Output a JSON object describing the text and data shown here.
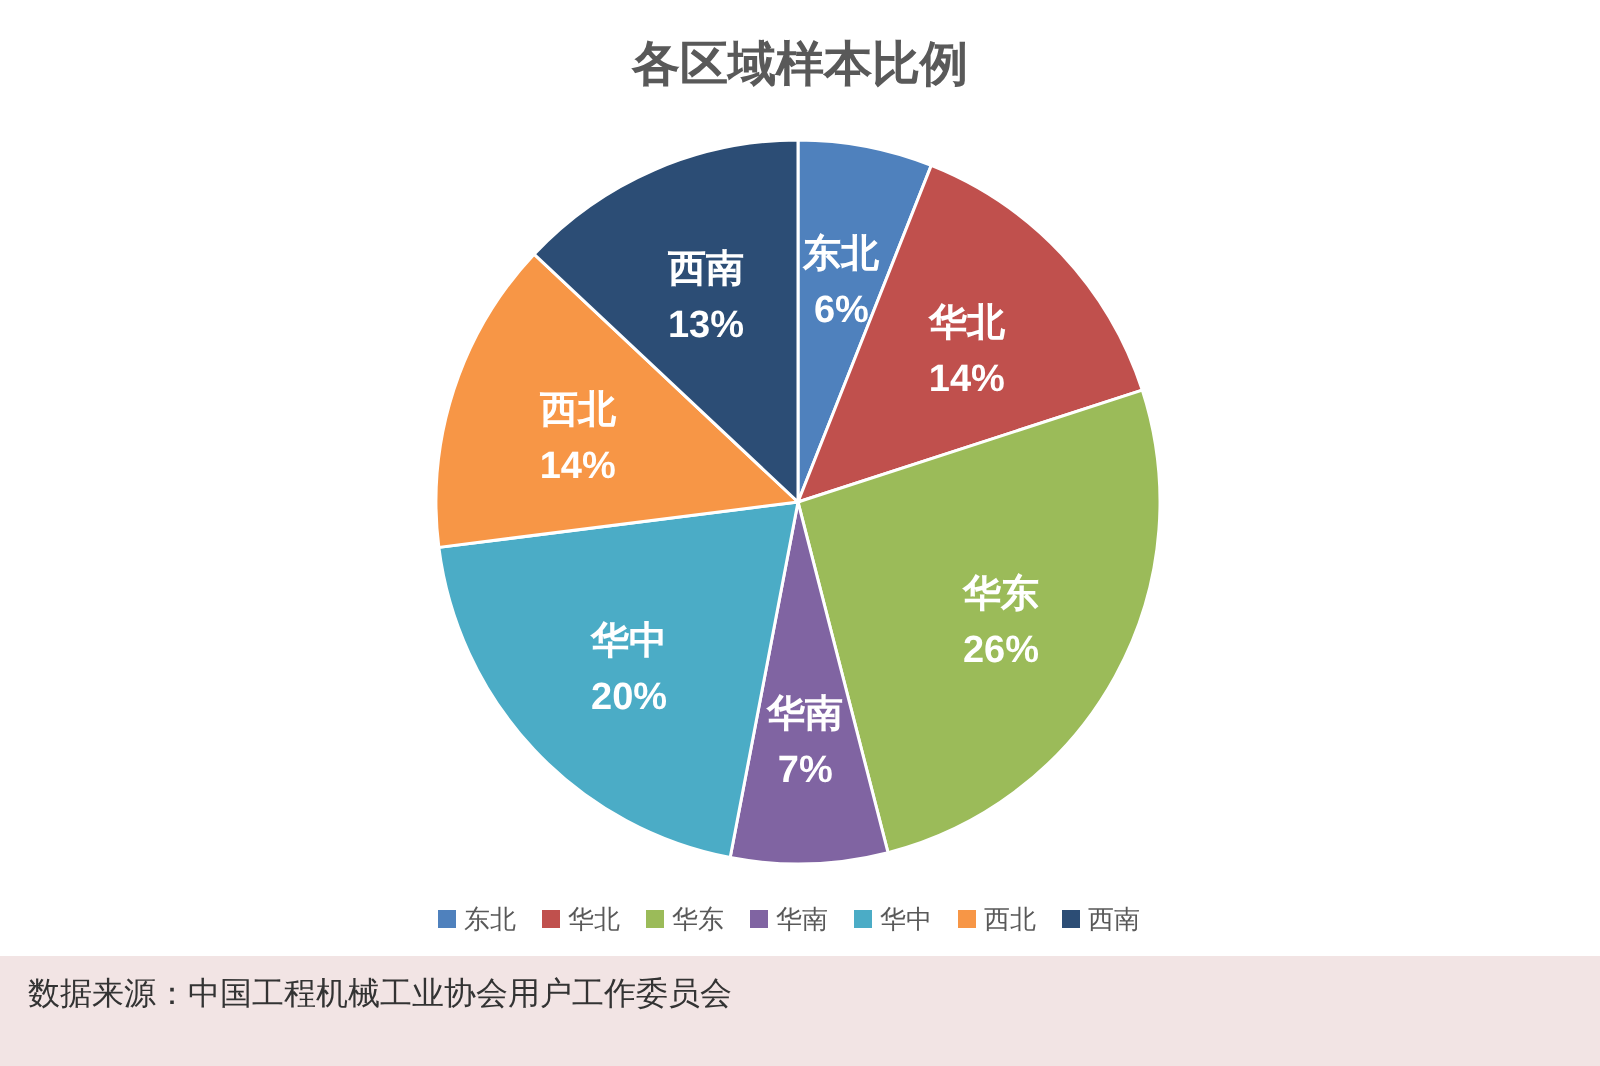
{
  "chart_data": {
    "type": "pie",
    "title": "各区域样本比例",
    "categories": [
      "东北",
      "华北",
      "华东",
      "华南",
      "华中",
      "西北",
      "西南"
    ],
    "values": [
      6,
      14,
      26,
      7,
      20,
      14,
      13
    ],
    "value_labels": [
      "6%",
      "14%",
      "26%",
      "7%",
      "20%",
      "14%",
      "13%"
    ],
    "colors": [
      "#4f81bd",
      "#c0504d",
      "#9bbb59",
      "#8064a2",
      "#4bacc6",
      "#f79646",
      "#2c4d75"
    ],
    "legend": "bottom",
    "annotations": [
      "数据来源：中国工程机械工业协会用户工作委员会"
    ]
  }
}
